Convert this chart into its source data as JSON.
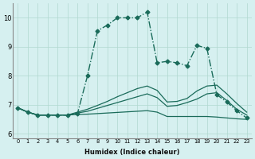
{
  "xlabel": "Humidex (Indice chaleur)",
  "background_color": "#d6f0f0",
  "line_color": "#1a6b5a",
  "xlim": [
    -0.5,
    23.5
  ],
  "ylim": [
    5.85,
    10.5
  ],
  "yticks": [
    6,
    7,
    8,
    9,
    10
  ],
  "xticks": [
    0,
    1,
    2,
    3,
    4,
    5,
    6,
    7,
    8,
    9,
    10,
    11,
    12,
    13,
    14,
    15,
    16,
    17,
    18,
    19,
    20,
    21,
    22,
    23
  ],
  "series": [
    {
      "x": [
        0,
        1,
        2,
        3,
        4,
        5,
        6,
        7,
        8,
        9,
        10,
        11,
        12,
        13,
        14,
        15,
        16,
        17,
        18,
        19,
        20,
        21,
        22,
        23
      ],
      "y": [
        6.9,
        6.75,
        6.65,
        6.65,
        6.65,
        6.65,
        6.7,
        8.0,
        9.55,
        9.75,
        10.0,
        10.0,
        10.0,
        10.2,
        8.45,
        8.5,
        8.45,
        8.35,
        9.05,
        8.95,
        7.35,
        7.1,
        6.8,
        6.55
      ],
      "style": "-.",
      "marker": "D",
      "markersize": 2.5,
      "linewidth": 1.0
    },
    {
      "x": [
        0,
        1,
        2,
        3,
        4,
        5,
        6,
        7,
        8,
        9,
        10,
        11,
        12,
        13,
        14,
        15,
        16,
        17,
        18,
        19,
        20,
        21,
        22,
        23
      ],
      "y": [
        6.9,
        6.75,
        6.65,
        6.65,
        6.65,
        6.65,
        6.67,
        6.68,
        6.7,
        6.72,
        6.74,
        6.76,
        6.78,
        6.8,
        6.75,
        6.6,
        6.6,
        6.6,
        6.6,
        6.6,
        6.58,
        6.55,
        6.52,
        6.5
      ],
      "style": "-",
      "marker": null,
      "markersize": 0,
      "linewidth": 0.9
    },
    {
      "x": [
        0,
        1,
        2,
        3,
        4,
        5,
        6,
        7,
        8,
        9,
        10,
        11,
        12,
        13,
        14,
        15,
        16,
        17,
        18,
        19,
        20,
        21,
        22,
        23
      ],
      "y": [
        6.9,
        6.75,
        6.65,
        6.65,
        6.65,
        6.65,
        6.72,
        6.78,
        6.88,
        6.98,
        7.08,
        7.18,
        7.28,
        7.38,
        7.25,
        6.95,
        6.98,
        7.08,
        7.2,
        7.38,
        7.42,
        7.15,
        6.85,
        6.65
      ],
      "style": "-",
      "marker": null,
      "markersize": 0,
      "linewidth": 0.9
    },
    {
      "x": [
        0,
        1,
        2,
        3,
        4,
        5,
        6,
        7,
        8,
        9,
        10,
        11,
        12,
        13,
        14,
        15,
        16,
        17,
        18,
        19,
        20,
        21,
        22,
        23
      ],
      "y": [
        6.9,
        6.75,
        6.65,
        6.65,
        6.65,
        6.65,
        6.75,
        6.85,
        6.98,
        7.12,
        7.28,
        7.42,
        7.56,
        7.65,
        7.5,
        7.1,
        7.12,
        7.22,
        7.48,
        7.65,
        7.68,
        7.38,
        7.05,
        6.75
      ],
      "style": "-",
      "marker": null,
      "markersize": 0,
      "linewidth": 0.9
    }
  ]
}
